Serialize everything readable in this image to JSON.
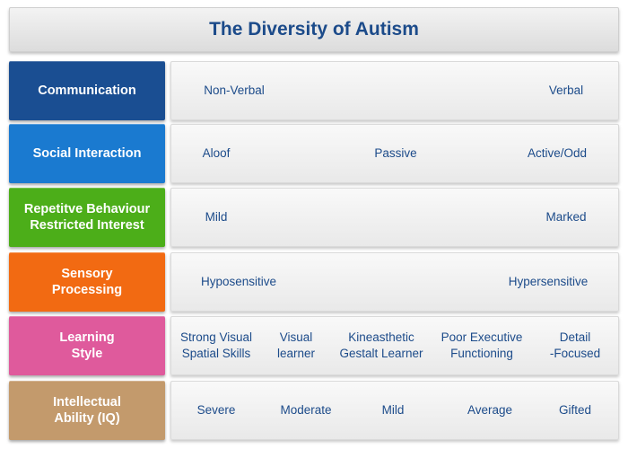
{
  "title": "The Diversity of Autism",
  "rows": [
    {
      "label": "Communication",
      "color": "#1a4e92",
      "items": [
        "Non-Verbal",
        "Verbal"
      ]
    },
    {
      "label": "Social Interaction",
      "color": "#1a7ad0",
      "items": [
        "Aloof",
        "Passive",
        "Active/Odd"
      ]
    },
    {
      "label": "Repetitve Behaviour\nRestricted Interest",
      "color": "#4cae19",
      "items": [
        "Mild",
        "Marked"
      ]
    },
    {
      "label": "Sensory\nProcessing",
      "color": "#f26a12",
      "items": [
        "Hyposensitive",
        "Hypersensitive"
      ]
    },
    {
      "label": "Learning\nStyle",
      "color": "#df5a9c",
      "items": [
        "Strong Visual\nSpatial Skills",
        "Visual\nlearner",
        "Kineasthetic\nGestalt Learner",
        "Poor Executive\nFunctioning",
        "Detail\n-Focused"
      ]
    },
    {
      "label": "Intellectual\nAbility (IQ)",
      "color": "#c39a6c",
      "items": [
        "Severe",
        "Moderate",
        "Mild",
        "Average",
        "Gifted"
      ]
    }
  ]
}
